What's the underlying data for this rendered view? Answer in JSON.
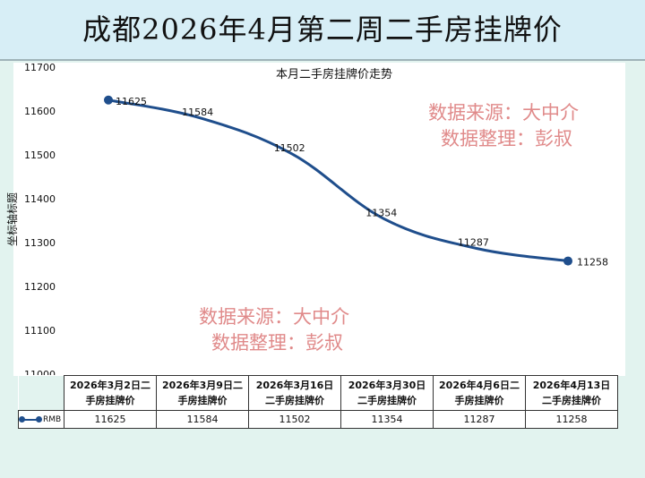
{
  "page": {
    "title": "成都2026年4月第二周二手房挂牌价"
  },
  "chart_data": {
    "type": "line",
    "title": "本月二手房挂牌价走势",
    "xlabel": "",
    "ylabel": "坐标轴标题",
    "categories": [
      [
        "2026年3月2日二",
        "手房挂牌价"
      ],
      [
        "2026年3月9日二",
        "手房挂牌价"
      ],
      [
        "2026年3月16日",
        "二手房挂牌价"
      ],
      [
        "2026年3月30日",
        "二手房挂牌价"
      ],
      [
        "2026年4月6日二",
        "手房挂牌价"
      ],
      [
        "2026年4月13日",
        "二手房挂牌价"
      ]
    ],
    "series": [
      {
        "name": "RMB",
        "values": [
          11625,
          11584,
          11502,
          11354,
          11287,
          11258
        ]
      }
    ],
    "ylim": [
      11000,
      11700
    ],
    "yticks": [
      11000,
      11100,
      11200,
      11300,
      11400,
      11500,
      11600,
      11700
    ],
    "grid": false,
    "legend": "data-table",
    "line_color": "#1f4e8c",
    "smooth": true
  },
  "watermarks": [
    {
      "line1": "数据来源：大中介",
      "line2": "数据整理：彭叔"
    },
    {
      "line1": "数据来源：大中介",
      "line2": "数据整理：彭叔"
    }
  ]
}
